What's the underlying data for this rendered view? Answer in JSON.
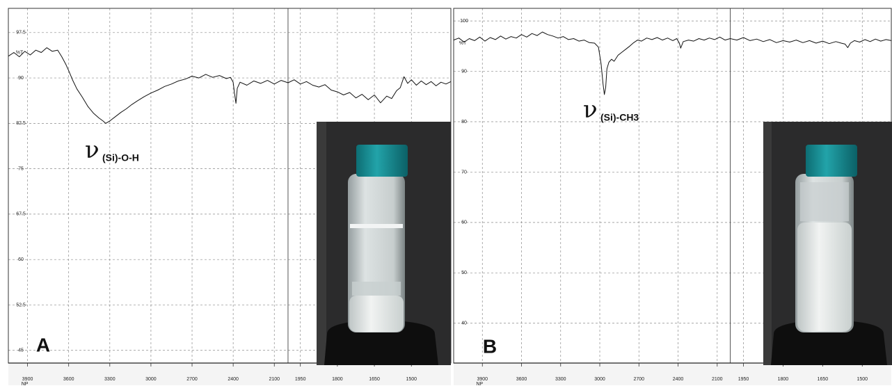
{
  "chart_data": [
    {
      "type": "line",
      "panel_label": "A",
      "y_label": "%T",
      "x_label": "NP",
      "annotation": {
        "symbol": "ν",
        "subscript": "(Si)-O-H"
      },
      "xlim": [
        4040,
        1340
      ],
      "xbreak": 2000,
      "ylim": [
        42.9,
        101.5
      ],
      "xticks": [
        3900,
        3600,
        3300,
        3000,
        2700,
        2400,
        2100,
        1950,
        1800,
        1650,
        1500
      ],
      "yticks": [
        45,
        52.5,
        60,
        67.5,
        75,
        82.5,
        90,
        97.5
      ],
      "grid": true,
      "color": "#111111",
      "x": [
        4040,
        4000,
        3960,
        3920,
        3880,
        3840,
        3800,
        3760,
        3720,
        3680,
        3650,
        3620,
        3600,
        3570,
        3540,
        3500,
        3460,
        3420,
        3380,
        3350,
        3330,
        3300,
        3260,
        3220,
        3180,
        3140,
        3100,
        3050,
        3000,
        2950,
        2900,
        2850,
        2800,
        2750,
        2700,
        2650,
        2600,
        2550,
        2500,
        2450,
        2420,
        2400,
        2390,
        2380,
        2370,
        2350,
        2300,
        2250,
        2200,
        2150,
        2100,
        2050,
        2000,
        1975,
        1950,
        1925,
        1900,
        1875,
        1850,
        1825,
        1800,
        1775,
        1750,
        1725,
        1700,
        1675,
        1650,
        1625,
        1600,
        1580,
        1560,
        1545,
        1530,
        1515,
        1500,
        1480,
        1460,
        1440,
        1420,
        1400,
        1380,
        1360,
        1340
      ],
      "values": [
        93.6,
        94.2,
        93.5,
        94.4,
        93.8,
        94.6,
        94.2,
        95.0,
        94.4,
        94.6,
        93.5,
        92.2,
        91.2,
        89.6,
        88.2,
        86.8,
        85.3,
        84.2,
        83.4,
        82.9,
        82.5,
        82.9,
        83.6,
        84.3,
        84.9,
        85.6,
        86.2,
        86.9,
        87.5,
        88.0,
        88.6,
        89.0,
        89.5,
        89.8,
        90.3,
        90.0,
        90.6,
        90.1,
        90.4,
        89.9,
        90.1,
        89.3,
        87.4,
        85.8,
        88.3,
        89.3,
        88.8,
        89.5,
        89.1,
        89.6,
        89.0,
        89.6,
        89.2,
        89.7,
        89.0,
        89.4,
        88.8,
        88.5,
        88.9,
        88.0,
        87.7,
        87.2,
        87.6,
        86.7,
        87.3,
        86.4,
        87.2,
        85.9,
        87.0,
        86.6,
        87.9,
        88.4,
        90.2,
        89.1,
        89.7,
        88.8,
        89.5,
        88.9,
        89.4,
        88.7,
        89.3,
        89.0,
        89.4
      ]
    },
    {
      "type": "line",
      "panel_label": "B",
      "y_label": "%T",
      "x_label": "NP",
      "annotation": {
        "symbol": "ν",
        "subscript": "(Si)-CH3"
      },
      "xlim": [
        4120,
        1390
      ],
      "xbreak": 2000,
      "ylim": [
        32.1,
        102.5
      ],
      "xticks": [
        3900,
        3600,
        3300,
        3000,
        2700,
        2400,
        2100,
        1950,
        1800,
        1650,
        1500
      ],
      "yticks": [
        40,
        50,
        60,
        70,
        80,
        90,
        100
      ],
      "grid": true,
      "color": "#111111",
      "x": [
        4120,
        4080,
        4040,
        4000,
        3960,
        3920,
        3880,
        3840,
        3800,
        3760,
        3720,
        3680,
        3640,
        3600,
        3560,
        3520,
        3480,
        3440,
        3400,
        3360,
        3320,
        3280,
        3240,
        3200,
        3160,
        3120,
        3080,
        3040,
        3010,
        2990,
        2975,
        2965,
        2955,
        2945,
        2930,
        2910,
        2890,
        2860,
        2830,
        2800,
        2770,
        2740,
        2710,
        2680,
        2640,
        2600,
        2560,
        2520,
        2480,
        2440,
        2410,
        2390,
        2380,
        2360,
        2320,
        2280,
        2240,
        2200,
        2160,
        2120,
        2080,
        2040,
        2000,
        1975,
        1950,
        1925,
        1900,
        1875,
        1850,
        1825,
        1800,
        1775,
        1750,
        1725,
        1700,
        1675,
        1650,
        1625,
        1600,
        1580,
        1565,
        1555,
        1545,
        1530,
        1510,
        1490,
        1470,
        1450,
        1430,
        1410,
        1390
      ],
      "values": [
        96.2,
        96.6,
        95.8,
        96.5,
        96.1,
        96.8,
        96.0,
        96.7,
        96.3,
        97.0,
        96.4,
        96.9,
        96.6,
        97.3,
        96.8,
        97.5,
        97.1,
        97.8,
        97.3,
        97.0,
        96.6,
        96.9,
        96.3,
        96.5,
        96.0,
        96.2,
        95.7,
        95.6,
        94.8,
        91.5,
        87.5,
        85.4,
        86.8,
        90.5,
        91.8,
        92.4,
        92.0,
        93.2,
        93.8,
        94.4,
        95.0,
        95.7,
        96.2,
        96.0,
        96.6,
        96.3,
        96.7,
        96.2,
        96.6,
        96.1,
        96.5,
        95.6,
        94.6,
        95.9,
        96.2,
        96.0,
        96.5,
        96.2,
        96.6,
        96.3,
        96.8,
        96.2,
        96.5,
        96.2,
        96.7,
        96.1,
        96.4,
        95.9,
        96.3,
        95.7,
        96.1,
        95.8,
        96.2,
        95.7,
        96.1,
        95.6,
        96.0,
        95.5,
        95.9,
        95.6,
        95.4,
        94.7,
        95.6,
        96.1,
        95.8,
        96.3,
        95.9,
        96.4,
        96.0,
        96.3,
        96.1
      ]
    }
  ]
}
